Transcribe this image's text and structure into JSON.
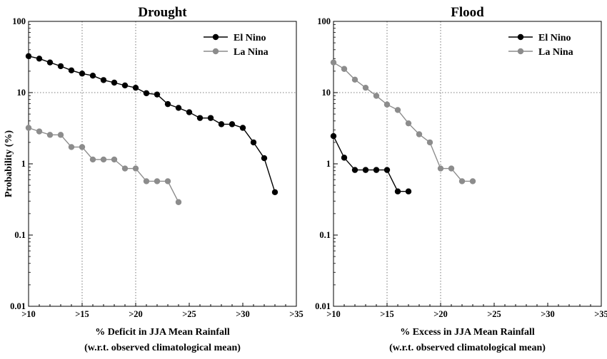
{
  "chart_data": [
    {
      "type": "line",
      "title": "Drought",
      "xlabel": "% Deficit in JJA Mean Rainfall",
      "xlabel2": "(w.r.t. observed climatological mean)",
      "ylabel": "Probability (%)",
      "yscale": "log",
      "ylim": [
        0.01,
        100
      ],
      "xlim": [
        10,
        35
      ],
      "xticks": [
        ">10",
        ">15",
        ">20",
        ">25",
        ">30",
        ">35"
      ],
      "yticks": [
        "0.01",
        "0.1",
        "1",
        "10",
        "100"
      ],
      "grid": "dotted at x=15, x=20, y=10",
      "legend_position": "top-right",
      "series": [
        {
          "name": "El Nino",
          "color": "#000000",
          "x": [
            10,
            11,
            12,
            13,
            14,
            15,
            16,
            17,
            18,
            19,
            20,
            21,
            22,
            23,
            24,
            25,
            26,
            27,
            28,
            29,
            30,
            31,
            32,
            33
          ],
          "y": [
            32.5,
            30,
            26.5,
            23.5,
            20.5,
            18.5,
            17.3,
            15,
            13.8,
            12.6,
            11.7,
            9.8,
            9.4,
            6.9,
            6.1,
            5.3,
            4.4,
            4.4,
            3.6,
            3.6,
            3.2,
            2.0,
            1.2,
            0.4
          ]
        },
        {
          "name": "La Nina",
          "color": "#8c8c8c",
          "x": [
            10,
            11,
            12,
            13,
            14,
            15,
            16,
            17,
            18,
            19,
            20,
            21,
            22,
            23,
            24
          ],
          "y": [
            3.2,
            2.85,
            2.55,
            2.55,
            1.72,
            1.72,
            1.15,
            1.15,
            1.15,
            0.86,
            0.86,
            0.57,
            0.57,
            0.57,
            0.29
          ]
        }
      ]
    },
    {
      "type": "line",
      "title": "Flood",
      "xlabel": "% Excess in JJA Mean Rainfall",
      "xlabel2": "(w.r.t. observed climatological mean)",
      "ylabel": "",
      "yscale": "log",
      "ylim": [
        0.01,
        100
      ],
      "xlim": [
        10,
        35
      ],
      "xticks": [
        ">10",
        ">15",
        ">20",
        ">25",
        ">30",
        ">35"
      ],
      "yticks": [
        "0.01",
        "0.1",
        "1",
        "10",
        "100"
      ],
      "grid": "dotted at x=15, x=20, y=10",
      "legend_position": "top-right",
      "series": [
        {
          "name": "El Nino",
          "color": "#000000",
          "x": [
            10,
            11,
            12,
            13,
            14,
            15,
            16,
            17
          ],
          "y": [
            2.45,
            1.22,
            0.82,
            0.82,
            0.82,
            0.82,
            0.41,
            0.41
          ]
        },
        {
          "name": "La Nina",
          "color": "#8c8c8c",
          "x": [
            10,
            11,
            12,
            13,
            14,
            15,
            16,
            17,
            18,
            19,
            20,
            21,
            22,
            23
          ],
          "y": [
            26.5,
            21.5,
            15.2,
            11.7,
            9.0,
            6.8,
            5.7,
            3.7,
            2.6,
            2.0,
            0.86,
            0.86,
            0.57,
            0.57
          ]
        }
      ]
    }
  ]
}
